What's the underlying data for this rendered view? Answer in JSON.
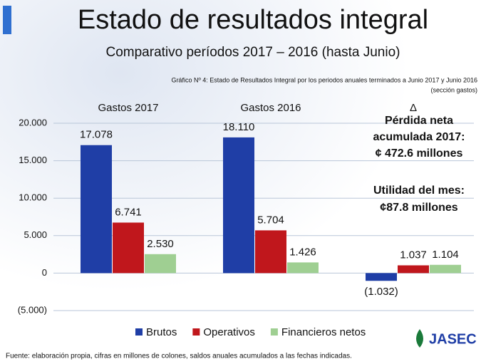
{
  "chart_data": {
    "type": "bar",
    "title": "Estado de resultados integral",
    "subtitle": "Comparativo períodos 2017 – 2016 (hasta Junio)",
    "caption": "Gráfico Nº 4: Estado de Resultados Integral por los periodos anuales terminados a Junio 2017 y Junio 2016",
    "caption_note": "(sección gastos)",
    "categories": [
      "Gastos 2017",
      "Gastos 2016",
      "Δ"
    ],
    "series": [
      {
        "name": "Brutos",
        "color": "#1f3ea6",
        "values": [
          17078,
          18110,
          -1032
        ],
        "value_labels": [
          "17.078",
          "18.110",
          "(1.032)"
        ]
      },
      {
        "name": "Operativos",
        "color": "#c0171c",
        "values": [
          6741,
          5704,
          1037
        ],
        "value_labels": [
          "6.741",
          "5.704",
          "1.037"
        ]
      },
      {
        "name": "Financieros netos",
        "color": "#9fcf92",
        "values": [
          2530,
          1426,
          1104
        ],
        "value_labels": [
          "2.530",
          "1.426",
          "1.104"
        ]
      }
    ],
    "ylim": [
      -5000,
      20000
    ],
    "yticks": [
      {
        "value": -5000,
        "label": "(5.000)"
      },
      0,
      {
        "value": 5000,
        "label": "5.000"
      },
      {
        "value": 10000,
        "label": "10.000"
      },
      {
        "value": 15000,
        "label": "15.000"
      },
      {
        "value": 20000,
        "label": "20.000"
      }
    ],
    "grid": true,
    "legend": "bottom",
    "annotations": [
      "Pérdida neta",
      "acumulada 2017:",
      "¢ 472.6 millones",
      "Utilidad del mes:",
      "¢87.8 millones"
    ],
    "source": "Fuente: elaboración propia, cifras en millones de colones, saldos anuales acumulados a las fechas indicadas."
  },
  "logo": "JASEC"
}
